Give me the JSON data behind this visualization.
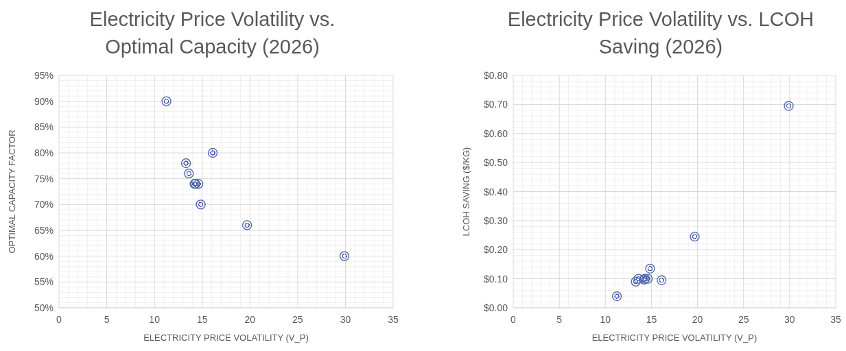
{
  "chart_data": [
    {
      "type": "scatter",
      "title": "Electricity Price Volatility vs. Optimal Capacity (2026)",
      "xlabel": "ELECTRICITY PRICE VOLATILITY (V_P)",
      "ylabel": "OPTIMAL CAPACITY FACTOR",
      "x": [
        11.25,
        16.1,
        13.3,
        13.6,
        14.2,
        14.3,
        14.6,
        14.85,
        19.7,
        29.9
      ],
      "series": [
        {
          "color": "#4a62a8",
          "values": [
            90,
            80,
            78,
            76,
            74,
            74,
            74,
            70,
            66,
            60
          ]
        }
      ],
      "xlim": [
        0,
        35
      ],
      "xticks": [
        0,
        5,
        10,
        15,
        20,
        25,
        30,
        35
      ],
      "ylim": [
        50,
        95
      ],
      "yticks": [
        {
          "value": 50,
          "label": "50%"
        },
        {
          "value": 55,
          "label": "55%"
        },
        {
          "value": 60,
          "label": "60%"
        },
        {
          "value": 65,
          "label": "65%"
        },
        {
          "value": 70,
          "label": "70%"
        },
        {
          "value": 75,
          "label": "75%"
        },
        {
          "value": 80,
          "label": "80%"
        },
        {
          "value": 85,
          "label": "85%"
        },
        {
          "value": 90,
          "label": "90%"
        },
        {
          "value": 95,
          "label": "95%"
        }
      ],
      "grid": true,
      "marker": "circle"
    },
    {
      "type": "scatter",
      "title": "Electricity Price Volatility vs. LCOH Saving (2026)",
      "xlabel": "ELECTRICITY PRICE VOLATILITY (V_P)",
      "ylabel": "LCOH SAVING ($/KG)",
      "x": [
        11.25,
        16.1,
        13.3,
        13.6,
        14.2,
        14.3,
        14.6,
        14.85,
        19.7,
        29.9
      ],
      "series": [
        {
          "color": "#4a62a8",
          "values": [
            0.04,
            0.095,
            0.09,
            0.1,
            0.097,
            0.1,
            0.1,
            0.135,
            0.245,
            0.695
          ]
        }
      ],
      "xlim": [
        0,
        35
      ],
      "xticks": [
        0,
        5,
        10,
        15,
        20,
        25,
        30,
        35
      ],
      "ylim": [
        0,
        0.8
      ],
      "yticks": [
        {
          "value": 0,
          "label": "$0.00"
        },
        {
          "value": 0.1,
          "label": "$0.10"
        },
        {
          "value": 0.2,
          "label": "$0.20"
        },
        {
          "value": 0.3,
          "label": "$0.30"
        },
        {
          "value": 0.4,
          "label": "$0.40"
        },
        {
          "value": 0.5,
          "label": "$0.50"
        },
        {
          "value": 0.6,
          "label": "$0.60"
        },
        {
          "value": 0.7,
          "label": "$0.70"
        },
        {
          "value": 0.8,
          "label": "$0.80"
        }
      ],
      "grid": true,
      "marker": "circle"
    }
  ]
}
